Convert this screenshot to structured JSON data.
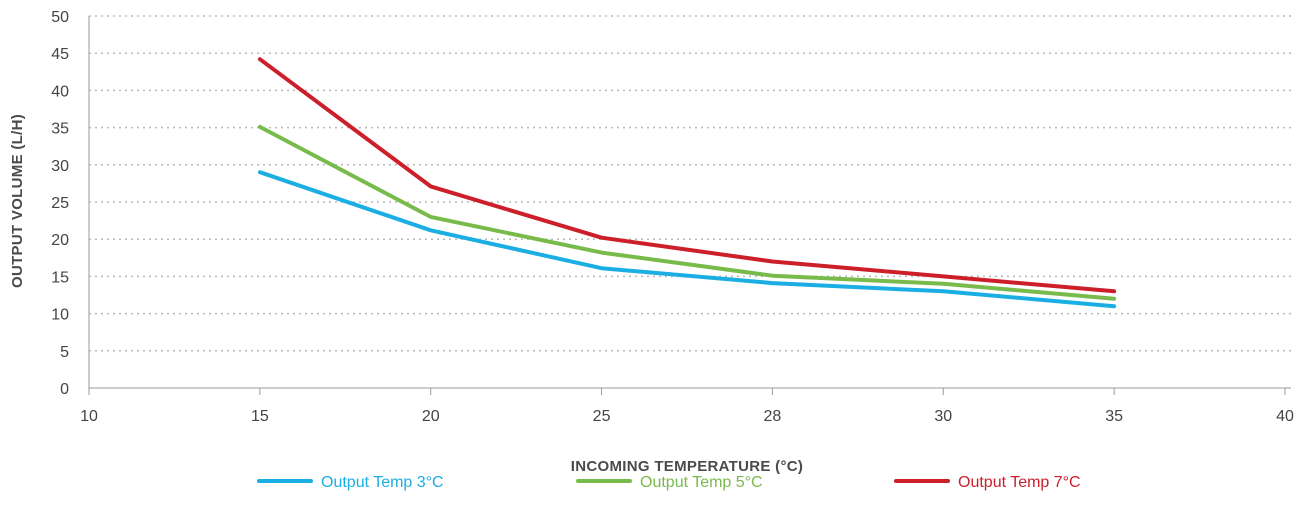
{
  "chart_data": {
    "type": "line",
    "x_categories": [
      "10",
      "15",
      "20",
      "25",
      "28",
      "30",
      "35",
      "40"
    ],
    "y_ticks": [
      "0",
      "5",
      "10",
      "15",
      "20",
      "25",
      "30",
      "35",
      "40",
      "45",
      "50"
    ],
    "ylim": [
      0,
      50
    ],
    "xlabel": "INCOMING TEMPERATURE (°C)",
    "ylabel": "OUTPUT VOLUME (L/H)",
    "grid": "horizontal-dotted",
    "legend_position": "bottom",
    "series": [
      {
        "name": "Output Temp 3°C",
        "color": "#1aaee3",
        "x": [
          "15",
          "20",
          "25",
          "28",
          "30",
          "35"
        ],
        "values": [
          29,
          21.2,
          16.1,
          14.1,
          13,
          11
        ]
      },
      {
        "name": "Output Temp 5°C",
        "color": "#78bb4b",
        "x": [
          "15",
          "20",
          "25",
          "28",
          "30",
          "35"
        ],
        "values": [
          35.1,
          23,
          18.2,
          15.1,
          14,
          12
        ]
      },
      {
        "name": "Output Temp 7°C",
        "color": "#cc1f2a",
        "x": [
          "15",
          "20",
          "25",
          "28",
          "30",
          "35"
        ],
        "values": [
          44.2,
          27.1,
          20.2,
          17,
          15,
          13
        ]
      }
    ]
  }
}
